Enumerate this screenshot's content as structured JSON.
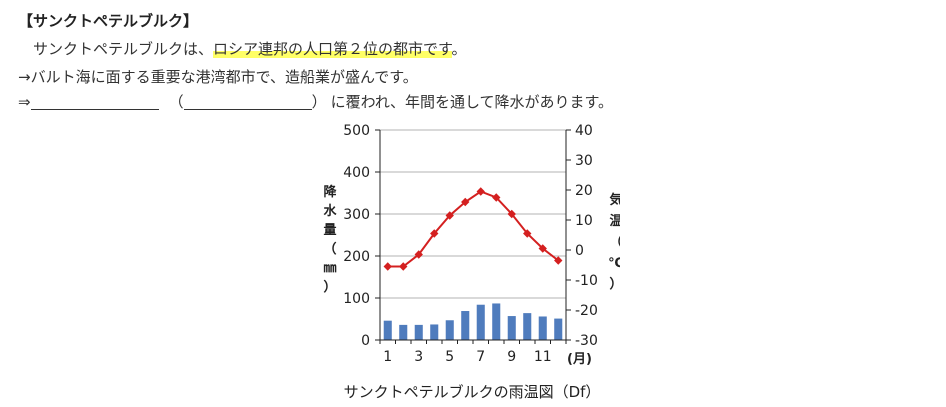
{
  "content": {
    "heading": "【サンクトペテルブルク】",
    "line1_prefix": "サンクトペテルブルクは、",
    "line1_highlight": "ロシア連邦の人口第２位の都市です",
    "line1_suffix": "。",
    "line2": "→バルト海に面する重要な港湾都市で、造船業が盛んです。",
    "line3_prefix": "⇒",
    "line3_paren_open": "（",
    "line3_paren_close": "）",
    "line3_suffix": "に覆われ、年間を通して降水があります。"
  },
  "chart_data": {
    "type": "bar+line",
    "caption": "サンクトペテルブルクの雨温図（Df）",
    "x_ticks": [
      "1",
      "3",
      "5",
      "7",
      "9",
      "11"
    ],
    "x_unit": "(月)",
    "left_axis": {
      "label": "降水量（㎜）",
      "ticks": [
        0,
        100,
        200,
        300,
        400,
        500
      ],
      "range": [
        0,
        500
      ]
    },
    "right_axis": {
      "label": "気温（℃）",
      "ticks": [
        -30,
        -20,
        -10,
        0,
        10,
        20,
        30,
        40
      ],
      "range": [
        -30,
        40
      ]
    },
    "months": [
      1,
      2,
      3,
      4,
      5,
      6,
      7,
      8,
      9,
      10,
      11,
      12
    ],
    "precipitation": [
      46,
      36,
      36,
      37,
      47,
      69,
      84,
      87,
      57,
      64,
      56,
      51
    ],
    "temperature": [
      -5.5,
      -5.5,
      -1.5,
      5.5,
      11.5,
      16.0,
      19.5,
      17.5,
      12.0,
      5.5,
      0.5,
      -3.5
    ],
    "colors": {
      "bars": "#4f7cbd",
      "line": "#d42020"
    }
  }
}
